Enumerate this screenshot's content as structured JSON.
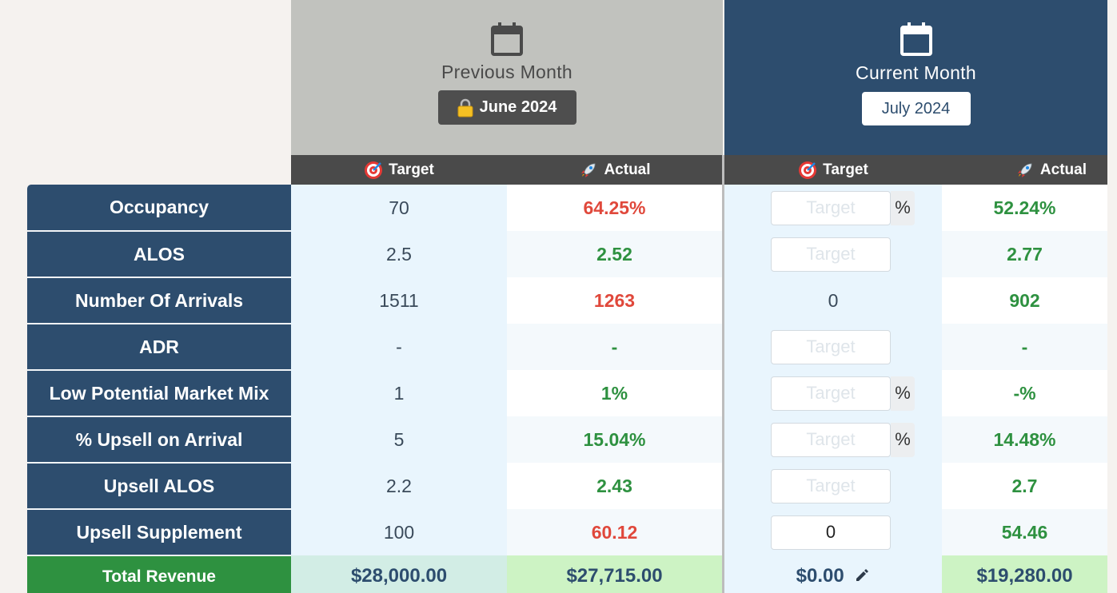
{
  "previous": {
    "title": "Previous Month",
    "month": "June 2024",
    "target_label": "Target",
    "actual_label": "Actual"
  },
  "current": {
    "title": "Current Month",
    "month": "July 2024",
    "target_label": "Target",
    "actual_label": "Actual"
  },
  "input_placeholder": "Target",
  "rows": [
    {
      "label": "Occupancy",
      "prev_target": "70",
      "prev_actual": "64.25%",
      "cur_actual": "52.24%",
      "cur_target_value": "",
      "pct_suffix": "%"
    },
    {
      "label": "ALOS",
      "prev_target": "2.5",
      "prev_actual": "2.52",
      "cur_actual": "2.77",
      "cur_target_value": ""
    },
    {
      "label": "Number Of Arrivals",
      "prev_target": "1511",
      "prev_actual": "1263",
      "cur_actual": "902",
      "cur_target_text": "0"
    },
    {
      "label": "ADR",
      "prev_target": "-",
      "prev_actual": "-",
      "cur_actual": "-",
      "cur_target_value": ""
    },
    {
      "label": "Low Potential Market Mix",
      "prev_target": "1",
      "prev_actual": "1%",
      "cur_actual": "-%",
      "cur_target_value": "",
      "pct_suffix": "%"
    },
    {
      "label": "% Upsell on Arrival",
      "prev_target": "5",
      "prev_actual": "15.04%",
      "cur_actual": "14.48%",
      "cur_target_value": "",
      "pct_suffix": "%"
    },
    {
      "label": "Upsell ALOS",
      "prev_target": "2.2",
      "prev_actual": "2.43",
      "cur_actual": "2.7",
      "cur_target_value": ""
    },
    {
      "label": "Upsell Supplement",
      "prev_target": "100",
      "prev_actual": "60.12",
      "cur_actual": "54.46",
      "cur_target_value": "0"
    }
  ],
  "total": {
    "label": "Total Revenue",
    "prev_target": "$28,000.00",
    "prev_actual": "$27,715.00",
    "cur_target": "$0.00",
    "cur_actual": "$19,280.00"
  },
  "colors": {
    "navy": "#2d4d6e",
    "red": "#e0483b",
    "green": "#2e9140",
    "total_green": "#2e9140"
  },
  "icons": {
    "calendar": "calendar-icon",
    "lock": "lock-icon",
    "target": "target-icon",
    "rocket": "rocket-icon",
    "edit": "pencil-icon"
  }
}
